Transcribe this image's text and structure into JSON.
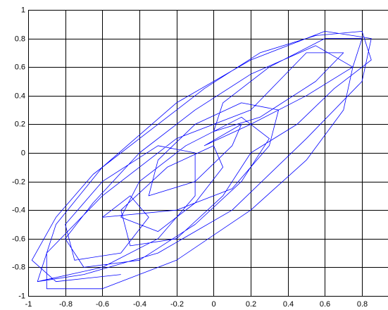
{
  "chart_data": {
    "type": "line",
    "x": [
      -0.95,
      -0.7,
      -0.3,
      0.1,
      0.5,
      0.8,
      0.85,
      0.6,
      0.2,
      -0.2,
      -0.6,
      -0.85,
      -0.95,
      -0.6,
      -0.3,
      -0.1,
      -0.1,
      -0.3,
      -0.6,
      -0.8,
      -0.75,
      -0.5,
      -0.35,
      -0.45,
      -0.6,
      -0.2,
      0.1,
      0.3,
      0.35,
      0.15,
      -0.1,
      -0.3,
      -0.35,
      -0.1,
      0.1,
      0.15,
      -0.05,
      0.2,
      0.5,
      0.75,
      0.8,
      0.6,
      0.3,
      0.05,
      0,
      0.25,
      0.55,
      0.7,
      0.5,
      0.35,
      0.2,
      -0.2,
      -0.6,
      -0.9,
      -0.9,
      -0.6,
      -0.2,
      0.2,
      0.5,
      0.7,
      0.75,
      0.55,
      0.2,
      -0.1,
      -0.4,
      -0.65,
      -0.8,
      -0.7,
      -0.4,
      -0.1,
      0.15,
      0.3,
      0.15,
      -0.15,
      -0.4,
      -0.5,
      -0.3,
      -0.1,
      0.05,
      0,
      -0.25,
      -0.5,
      -0.45,
      -0.2,
      0.05,
      0.2,
      0.45,
      0.65,
      0.85,
      0.8,
      0.55,
      0.25,
      -0.05,
      -0.35,
      -0.65,
      -0.85,
      -0.98,
      -0.85,
      -0.5
    ],
    "series": [
      {
        "color": "#0000ff",
        "values": [
          -0.9,
          -0.85,
          -0.7,
          -0.4,
          0.1,
          0.5,
          0.8,
          0.85,
          0.65,
          0.35,
          -0.1,
          -0.5,
          -0.9,
          -0.8,
          -0.6,
          -0.3,
          0,
          0.05,
          -0.2,
          -0.5,
          -0.75,
          -0.7,
          -0.45,
          -0.3,
          -0.45,
          -0.4,
          -0.25,
          0.05,
          0.3,
          0.35,
          0.2,
          -0.05,
          -0.3,
          -0.2,
          0.05,
          0.2,
          0.05,
          0.2,
          0.4,
          0.6,
          0.8,
          0.8,
          0.6,
          0.35,
          0.15,
          0.25,
          0.5,
          0.7,
          0.7,
          0.5,
          0.3,
          0.1,
          -0.3,
          -0.7,
          -0.95,
          -0.95,
          -0.75,
          -0.4,
          -0.05,
          0.3,
          0.6,
          0.75,
          0.55,
          0.3,
          0,
          -0.35,
          -0.6,
          -0.8,
          -0.75,
          -0.5,
          -0.2,
          0.1,
          0.25,
          0.05,
          -0.2,
          -0.45,
          -0.55,
          -0.35,
          -0.1,
          0.05,
          -0.1,
          -0.4,
          -0.65,
          -0.6,
          -0.3,
          0,
          0.2,
          0.45,
          0.65,
          0.85,
          0.82,
          0.7,
          0.45,
          0.15,
          -0.15,
          -0.45,
          -0.75,
          -0.9,
          -0.85
        ]
      }
    ],
    "xlim": [
      -1,
      0.94
    ],
    "ylim": [
      -1,
      1
    ],
    "xticks": [
      -1,
      -0.8,
      -0.6,
      -0.4,
      -0.2,
      0,
      0.2,
      0.4,
      0.6,
      0.8
    ],
    "yticks": [
      -1,
      -0.8,
      -0.6,
      -0.4,
      -0.2,
      0,
      0.2,
      0.4,
      0.6,
      0.8,
      1
    ],
    "grid": true
  }
}
